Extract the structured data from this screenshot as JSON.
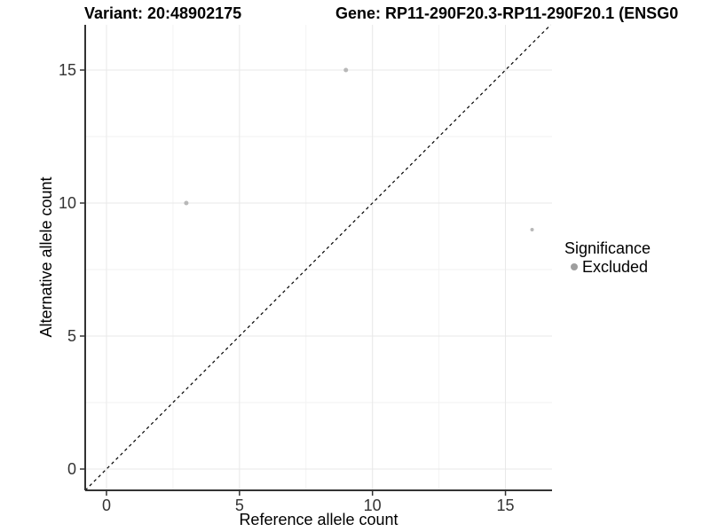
{
  "titles": {
    "variant": "Variant: 20:48902175",
    "gene": "Gene: RP11-290F20.3-RP11-290F20.1 (ENSG0"
  },
  "legend": {
    "title": "Significance",
    "items": [
      {
        "label": "Excluded",
        "marker": "circle-icon",
        "color": "#9e9e9e"
      }
    ]
  },
  "chart_data": {
    "type": "scatter",
    "title": "Variant: 20:48902175",
    "subtitle": "Gene: RP11-290F20.3-RP11-290F20.1 (ENSG0…)",
    "xlabel": "Reference allele count",
    "ylabel": "Alternative allele count",
    "xlim": [
      -0.8,
      16.75
    ],
    "ylim": [
      -0.8,
      16.7
    ],
    "x_ticks": [
      0,
      5,
      10,
      15
    ],
    "y_ticks": [
      0,
      5,
      10,
      15
    ],
    "x_minor_ticks": [
      2.5,
      7.5,
      12.5
    ],
    "y_minor_ticks": [
      2.5,
      7.5,
      12.5
    ],
    "grid": "on",
    "legend_position": "right",
    "series": [
      {
        "name": "Excluded",
        "color": "#b8b8b8",
        "points": [
          {
            "x": 3,
            "y": 10,
            "r": 2.5
          },
          {
            "x": 9,
            "y": 15,
            "r": 2.5
          },
          {
            "x": 16,
            "y": 9,
            "r": 2.0
          }
        ]
      }
    ],
    "identity_line": {
      "type": "abline",
      "slope": 1,
      "intercept": 0,
      "style": "dashed",
      "color": "#000000"
    }
  },
  "colors": {
    "background": "#ffffff",
    "axis_line": "#333333",
    "tick_label": "#333333",
    "grid_major": "#e8e8e8",
    "grid_minor": "#f2f2f2"
  }
}
